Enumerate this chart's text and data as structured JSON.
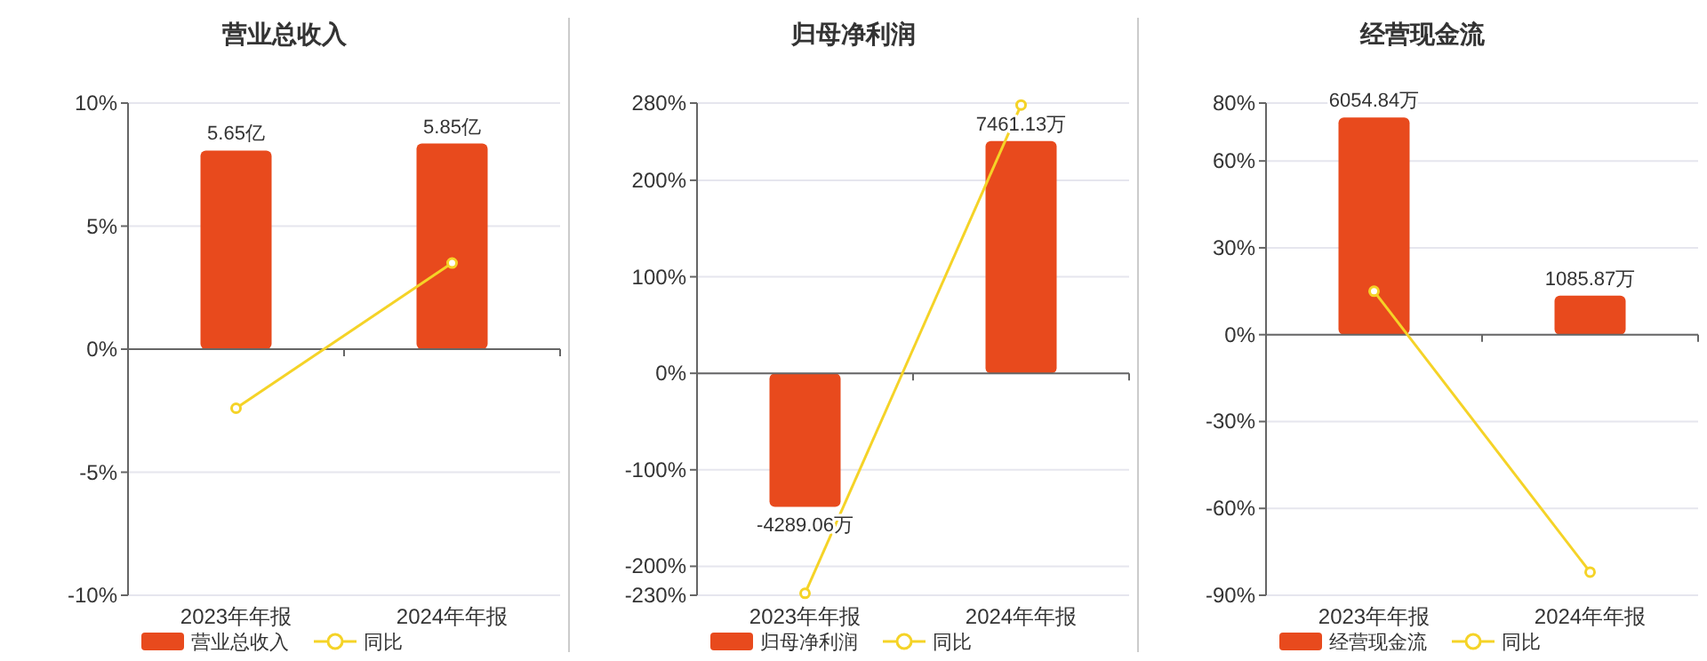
{
  "chart_data": [
    {
      "type": "bar",
      "title": "营业总收入",
      "categories": [
        "2023年年报",
        "2024年年报"
      ],
      "ylim": [
        -10,
        10
      ],
      "yticks": [
        {
          "value": 10,
          "label": "10%"
        },
        {
          "value": 5,
          "label": "5%"
        },
        {
          "value": 0,
          "label": "0%"
        },
        {
          "value": -5,
          "label": "-5%"
        },
        {
          "value": -10,
          "label": "-10%"
        }
      ],
      "y2lim": [
        -7,
        7
      ],
      "grid": "y",
      "legend": "bottom",
      "marker": "circle",
      "series": [
        {
          "name": "营业总收入",
          "axis": "y2",
          "color": "#e84a1d",
          "values": [
            5.65,
            5.85
          ],
          "value_labels": [
            "5.65亿",
            "5.85亿"
          ]
        },
        {
          "name": "同比",
          "type": "line",
          "color": "#f5d327",
          "values": [
            -2.4,
            3.5
          ]
        }
      ]
    },
    {
      "type": "bar",
      "title": "归母净利润",
      "categories": [
        "2023年年报",
        "2024年年报"
      ],
      "ylim": [
        -230,
        280
      ],
      "yticks": [
        {
          "value": 280,
          "label": "280%"
        },
        {
          "value": 200,
          "label": "200%"
        },
        {
          "value": 100,
          "label": "100%"
        },
        {
          "value": 0,
          "label": "0%"
        },
        {
          "value": -100,
          "label": "-100%"
        },
        {
          "value": -200,
          "label": "-200%"
        },
        {
          "value": -230,
          "label": "-230%"
        }
      ],
      "y2lim": [
        -7130,
        8680
      ],
      "grid": "y",
      "legend": "bottom",
      "marker": "circle",
      "series": [
        {
          "name": "归母净利润",
          "axis": "y2",
          "color": "#e84a1d",
          "values": [
            -4289.06,
            7461.13
          ],
          "value_labels": [
            "-4289.06万",
            "7461.13万"
          ]
        },
        {
          "name": "同比",
          "type": "line",
          "color": "#f5d327",
          "values": [
            -228,
            278
          ]
        }
      ]
    },
    {
      "type": "bar",
      "title": "经营现金流",
      "categories": [
        "2023年年报",
        "2024年年报"
      ],
      "ylim": [
        -90,
        80
      ],
      "yticks": [
        {
          "value": 80,
          "label": "80%"
        },
        {
          "value": 60,
          "label": "60%"
        },
        {
          "value": 30,
          "label": "30%"
        },
        {
          "value": 0,
          "label": "0%"
        },
        {
          "value": -30,
          "label": "-30%"
        },
        {
          "value": -60,
          "label": "-60%"
        },
        {
          "value": -90,
          "label": "-90%"
        }
      ],
      "y2lim": [
        -7263,
        6456
      ],
      "grid": "y",
      "legend": "bottom",
      "marker": "circle",
      "series": [
        {
          "name": "经营现金流",
          "axis": "y2",
          "color": "#e84a1d",
          "values": [
            6054.84,
            1085.87
          ],
          "value_labels": [
            "6054.84万",
            "1085.87万"
          ]
        },
        {
          "name": "同比",
          "type": "line",
          "color": "#f5d327",
          "values": [
            15,
            -82
          ]
        }
      ]
    }
  ]
}
